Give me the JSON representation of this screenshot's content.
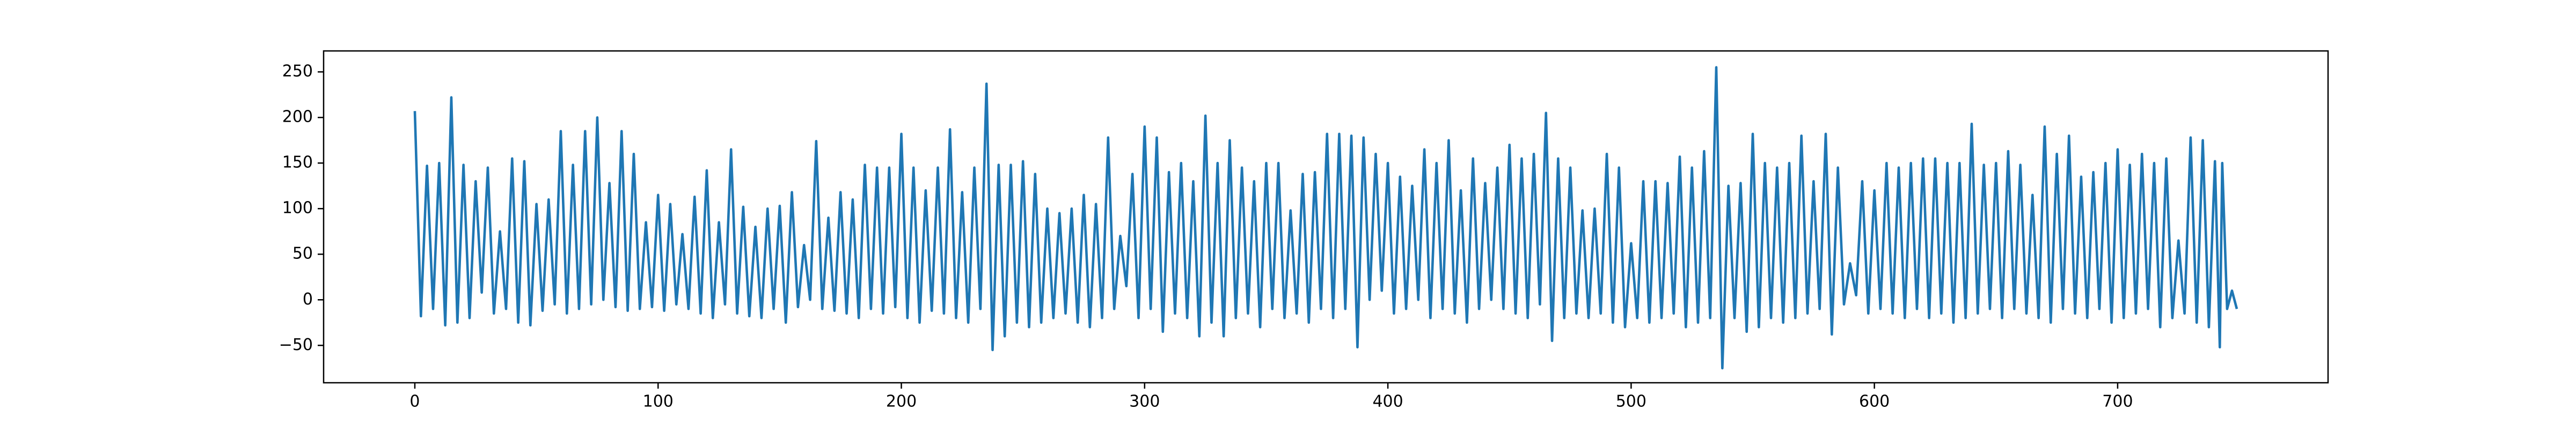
{
  "chart_data": {
    "type": "line",
    "color": "#1f77b4",
    "xlim": [
      -37.5,
      786.5
    ],
    "ylim": [
      -91,
      273
    ],
    "xticks": [
      0,
      100,
      200,
      300,
      400,
      500,
      600,
      700
    ],
    "yticks": [
      {
        "value": -50,
        "label": "−50"
      },
      0,
      50,
      100,
      150,
      200,
      250
    ],
    "x": [
      0,
      2.5,
      5,
      7.5,
      10,
      12.5,
      15,
      17.5,
      20,
      22.5,
      25,
      27.5,
      30,
      32.5,
      35,
      37.5,
      40,
      42.5,
      45,
      47.5,
      50,
      52.5,
      55,
      57.5,
      60,
      62.5,
      65,
      67.5,
      70,
      72.5,
      75,
      77.5,
      80,
      82.5,
      85,
      87.5,
      90,
      92.5,
      95,
      97.5,
      100,
      102.5,
      105,
      107.5,
      110,
      112.5,
      115,
      117.5,
      120,
      122.5,
      125,
      127.5,
      130,
      132.5,
      135,
      137.5,
      140,
      142.5,
      145,
      147.5,
      150,
      152.5,
      155,
      157.5,
      160,
      162.5,
      165,
      167.5,
      170,
      172.5,
      175,
      177.5,
      180,
      182.5,
      185,
      187.5,
      190,
      192.5,
      195,
      197.5,
      200,
      202.5,
      205,
      207.5,
      210,
      212.5,
      215,
      217.5,
      220,
      222.5,
      225,
      227.5,
      230,
      232.5,
      235,
      237.5,
      240,
      242.5,
      245,
      247.5,
      250,
      252.5,
      255,
      257.5,
      260,
      262.5,
      265,
      267.5,
      270,
      272.5,
      275,
      277.5,
      280,
      282.5,
      285,
      287.5,
      290,
      292.5,
      295,
      297.5,
      300,
      302.5,
      305,
      307.5,
      310,
      312.5,
      315,
      317.5,
      320,
      322.5,
      325,
      327.5,
      330,
      332.5,
      335,
      337.5,
      340,
      342.5,
      345,
      347.5,
      350,
      352.5,
      355,
      357.5,
      360,
      362.5,
      365,
      367.5,
      370,
      372.5,
      375,
      377.5,
      380,
      382.5,
      385,
      387.5,
      390,
      392.5,
      395,
      397.5,
      400,
      402.5,
      405,
      407.5,
      410,
      412.5,
      415,
      417.5,
      420,
      422.5,
      425,
      427.5,
      430,
      432.5,
      435,
      437.5,
      440,
      442.5,
      445,
      447.5,
      450,
      452.5,
      455,
      457.5,
      460,
      462.5,
      465,
      467.5,
      470,
      472.5,
      475,
      477.5,
      480,
      482.5,
      485,
      487.5,
      490,
      492.5,
      495,
      497.5,
      500,
      502.5,
      505,
      507.5,
      510,
      512.5,
      515,
      517.5,
      520,
      522.5,
      525,
      527.5,
      530,
      532.5,
      535,
      537.5,
      540,
      542.5,
      545,
      547.5,
      550,
      552.5,
      555,
      557.5,
      560,
      562.5,
      565,
      567.5,
      570,
      572.5,
      575,
      577.5,
      580,
      582.5,
      585,
      587.5,
      590,
      592.5,
      595,
      597.5,
      600,
      602.5,
      605,
      607.5,
      610,
      612.5,
      615,
      617.5,
      620,
      622.5,
      625,
      627.5,
      630,
      632.5,
      635,
      637.5,
      640,
      642.5,
      645,
      647.5,
      650,
      652.5,
      655,
      657.5,
      660,
      662.5,
      665,
      667.5,
      670,
      672.5,
      675,
      677.5,
      680,
      682.5,
      685,
      687.5,
      690,
      692.5,
      695,
      697.5,
      700,
      702.5,
      705,
      707.5,
      710,
      712.5,
      715,
      717.5,
      720,
      722.5,
      725,
      727.5,
      730,
      732.5,
      735,
      737.5,
      740,
      742,
      743,
      745,
      747,
      749
    ],
    "values": [
      207,
      -18,
      147,
      -10,
      150,
      -28,
      222,
      -25,
      148,
      -20,
      130,
      8,
      145,
      -15,
      75,
      -10,
      155,
      -25,
      152,
      -28,
      105,
      -12,
      110,
      -5,
      185,
      -15,
      148,
      -10,
      185,
      -5,
      200,
      0,
      128,
      -8,
      185,
      -12,
      160,
      -10,
      85,
      -8,
      115,
      -12,
      105,
      -5,
      72,
      -10,
      113,
      -15,
      142,
      -20,
      85,
      -5,
      165,
      -15,
      102,
      -18,
      80,
      -20,
      100,
      -10,
      103,
      -25,
      118,
      -8,
      60,
      0,
      174,
      -10,
      90,
      -12,
      118,
      -15,
      110,
      -20,
      148,
      -10,
      145,
      -15,
      145,
      -8,
      182,
      -20,
      145,
      -25,
      120,
      -12,
      145,
      -15,
      187,
      -20,
      118,
      -25,
      145,
      -10,
      237,
      -55,
      148,
      -40,
      148,
      -25,
      152,
      -30,
      138,
      -25,
      100,
      -20,
      95,
      -15,
      100,
      -25,
      115,
      -30,
      105,
      -20,
      178,
      -10,
      70,
      15,
      138,
      -20,
      190,
      -10,
      178,
      -35,
      140,
      -15,
      150,
      -20,
      130,
      -40,
      202,
      -25,
      150,
      -40,
      175,
      -20,
      145,
      -15,
      130,
      -30,
      150,
      -10,
      150,
      -20,
      98,
      -15,
      138,
      -25,
      140,
      -10,
      182,
      -20,
      182,
      -10,
      180,
      -52,
      178,
      0,
      160,
      10,
      150,
      -15,
      135,
      -10,
      125,
      0,
      165,
      -20,
      150,
      -10,
      175,
      -15,
      120,
      -25,
      155,
      -10,
      128,
      0,
      145,
      -10,
      170,
      -15,
      155,
      -20,
      160,
      -5,
      205,
      -45,
      155,
      -20,
      145,
      -15,
      98,
      -20,
      100,
      -15,
      160,
      -25,
      145,
      -30,
      62,
      -20,
      130,
      -25,
      130,
      -20,
      128,
      -15,
      157,
      -30,
      145,
      -25,
      163,
      -20,
      255,
      -75,
      125,
      -20,
      128,
      -35,
      182,
      -30,
      150,
      -20,
      145,
      -25,
      150,
      -20,
      180,
      -15,
      130,
      -10,
      182,
      -38,
      145,
      -5,
      40,
      5,
      130,
      -15,
      120,
      -10,
      150,
      -15,
      145,
      -20,
      150,
      -10,
      155,
      -20,
      155,
      -15,
      150,
      -25,
      150,
      -20,
      193,
      -15,
      148,
      -10,
      150,
      -20,
      163,
      -10,
      148,
      -15,
      115,
      -20,
      190,
      -25,
      160,
      -10,
      180,
      -15,
      135,
      -20,
      140,
      -10,
      150,
      -25,
      165,
      -20,
      148,
      -15,
      160,
      -10,
      150,
      -30,
      155,
      -20,
      65,
      -15,
      178,
      -25,
      175,
      -30,
      152,
      -52,
      150,
      -10,
      10,
      -10
    ]
  }
}
